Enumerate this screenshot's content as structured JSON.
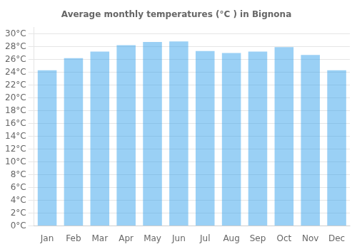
{
  "chart_data": {
    "type": "bar",
    "title": "Average monthly temperatures (°C ) in Bignona",
    "categories": [
      "Jan",
      "Feb",
      "Mar",
      "Apr",
      "May",
      "Jun",
      "Jul",
      "Aug",
      "Sep",
      "Oct",
      "Nov",
      "Dec"
    ],
    "values": [
      24.3,
      26.2,
      27.2,
      28.2,
      28.7,
      28.8,
      27.3,
      27.0,
      27.2,
      27.9,
      26.7,
      24.3
    ],
    "ylim": [
      0,
      31
    ],
    "yticks": [
      {
        "value": 0,
        "label": "0°C"
      },
      {
        "value": 2,
        "label": "2°C"
      },
      {
        "value": 4,
        "label": "4°C"
      },
      {
        "value": 6,
        "label": "6°C"
      },
      {
        "value": 8,
        "label": "8°C"
      },
      {
        "value": 10,
        "label": "10°C"
      },
      {
        "value": 12,
        "label": "12°C"
      },
      {
        "value": 14,
        "label": "14°C"
      },
      {
        "value": 16,
        "label": "16°C"
      },
      {
        "value": 18,
        "label": "18°C"
      },
      {
        "value": 20,
        "label": "20°C"
      },
      {
        "value": 22,
        "label": "22°C"
      },
      {
        "value": 24,
        "label": "24°C"
      },
      {
        "value": 26,
        "label": "26°C"
      },
      {
        "value": 28,
        "label": "28°C"
      },
      {
        "value": 30,
        "label": "30°C"
      }
    ],
    "grid": true
  }
}
